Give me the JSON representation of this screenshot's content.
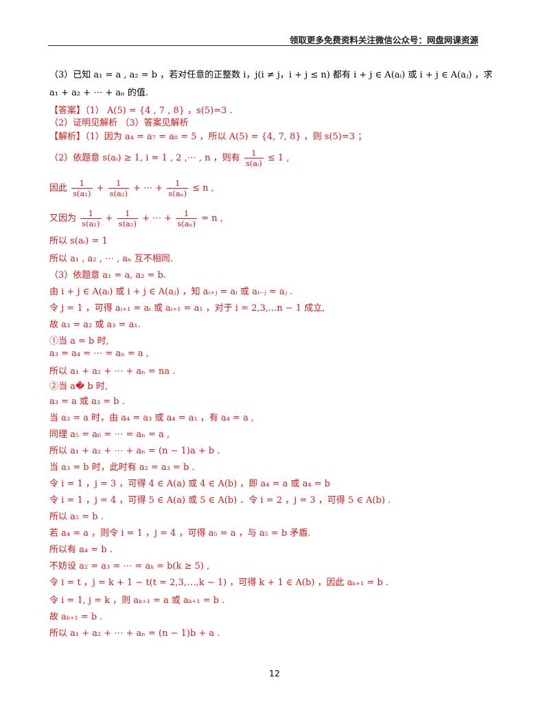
{
  "header": {
    "text": "领取更多免费资料关注微信公众号：网盘网课资源"
  },
  "page_number": "12",
  "lines": [
    "（3）已知 a₁ = a , a₂ = b ，若对任意的正整数 i，j(i ≠ j，i + j ≤ n) 都有 i + j ∈ A(aᵢ) 或 i + j ∈ A(aⱼ) ，求",
    "a₁ + a₂ + ⋯ + aₙ 的值.",
    "【答案】（1） A(5) = {4 , 7 , 8} ，s(5)=3 .",
    "（2）证明见解析         （3）答案见解析",
    "【解析】（1）因为 a₄ = a₇ = a₈ = 5 ，所以 A(5) = {4, 7, 8} ，则 s(5)=3 ；",
    "（2）依题意 s(aᵢ) ≥ 1, i = 1 , 2 ,⋯ ,  n ，则有",
    "因此",
    "又因为",
    "所以 s(aᵢ) = 1",
    "所以 a₁ , a₂ , ⋯ , aₙ 互不相同.",
    "（3）依题意 a₁ = a, a₂ = b.",
    "由 i + j ∈ A(aᵢ) 或 i + j ∈ A(aⱼ) ，知 aᵢ₊ⱼ = aᵢ 或 aᵢ₋ⱼ = aⱼ .",
    "令 j = 1 ，可得 aᵢ₊₁ = aᵢ 或 aᵢ₊₁ = a₁ ，对于 i = 2,3,...n − 1 成立,",
    "故 a₃ = a₂ 或 a₃ = a₁.",
    "①当 a = b 时,",
    "a₃ = a₄ = ⋯ = aₙ = a ,",
    "所以 a₁ + a₂ + ⋯ + aₙ = na .",
    "②当 a� b 时,",
    "a₃ = a 或 a₃ = b .",
    "当 a₃ = a 时，由 a₄ = a₃ 或 a₄ = a₁ ，有 a₄ = a ,",
    "同理 a₅ = a₆ = ⋯ = aₙ = a ,",
    "所以 a₁ + a₂ + ⋯ + aₙ = (n − 1)a + b .",
    "当 a₃ = b 时，此时有 a₂ = a₃ = b .",
    "令 i = 1 ，j = 3 ，可得 4 ∈ A(a) 或 4 ∈ A(b) ，即 a₄ = a 或 a₄ = b",
    "令 i = 1 ，j = 4 ，可得 5 ∈ A(a) 或 5 ∈ A(b) ．令 i = 2 ，j = 3 ，可得 5 ∈ A(b) .",
    "所以 a₅ = b .",
    "若 a₄ = a ，则令 i = 1 ，j = 4 ，可得 a₅ = a ，与 a₅ = b 矛盾.",
    "所以有 a₄ = b .",
    "不妨设 a₂ = a₃ = ⋯ = aₖ = b(k ≥ 5) ,",
    "令 i = t ，j = k + 1 − t(t = 2,3,⋯,k − 1) ，可得 k + 1 ∈ A(b) ，因此 aₖ₊₁ = b .",
    "令 i = 1, j = k ，则 aₖ₊₁ = a 或 aₖ₊₁ = b .",
    "故 aₖ₊₁ = b .",
    "所以 a₁ + a₂ + ⋯ + aₙ = (n − 1)b + a ."
  ],
  "fractions": {
    "l6_num": "1",
    "l6_den": "s(aᵢ)",
    "l6_tail": " ≤ 1 ,",
    "l7_f1_num": "1",
    "l7_f1_den": "s(a₁)",
    "l7_f2_num": "1",
    "l7_f2_den": "s(a₂)",
    "l7_f3_num": "1",
    "l7_f3_den": "s(aₙ)",
    "l7_mid1": " + ",
    "l7_mid2": " + ⋯ + ",
    "l7_tail": " ≤ n ,",
    "l8_f1_num": "1",
    "l8_f1_den": "s(a₁)",
    "l8_f2_num": "1",
    "l8_f2_den": "s(a₂)",
    "l8_f3_num": "1",
    "l8_f3_den": "s(aₙ)",
    "l8_mid1": " + ",
    "l8_mid2": " + ⋯ + ",
    "l8_tail": " = n ,"
  },
  "colors": {
    "red": "#e21414",
    "black": "#000000"
  }
}
